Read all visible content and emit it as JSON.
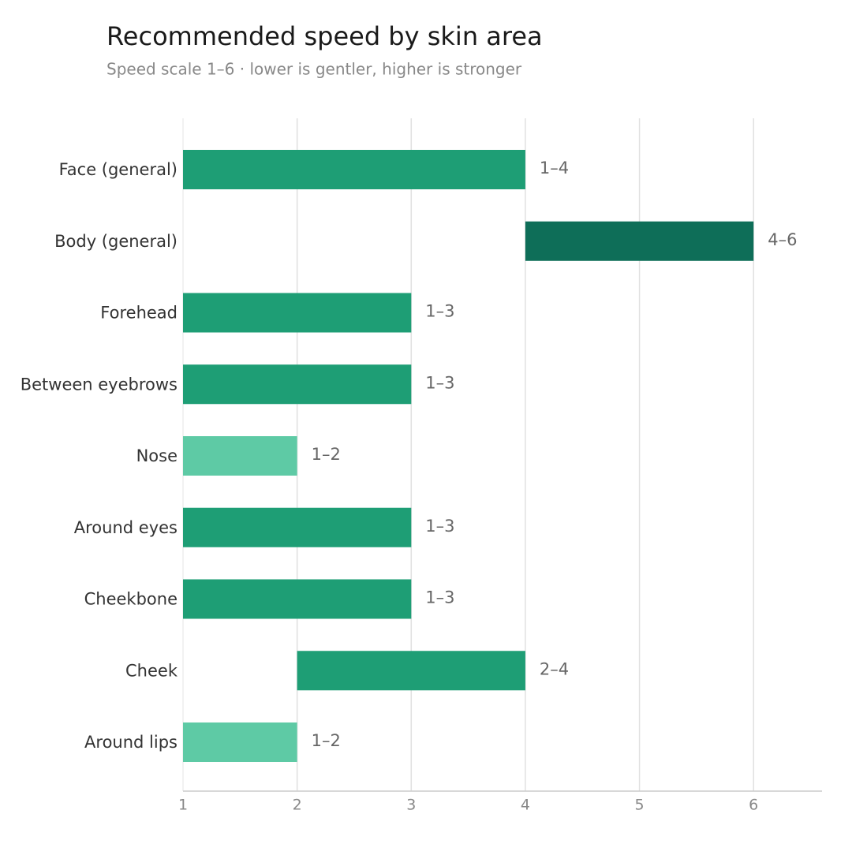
{
  "chart_data": {
    "type": "range-bar",
    "title": "Recommended speed by skin area",
    "subtitle": "Speed scale 1–6  ·  lower is gentler, higher is stronger",
    "categories": [
      "Face (general)",
      "Body (general)",
      "Forehead",
      "Between eyebrows",
      "Nose",
      "Around eyes",
      "Cheekbone",
      "Cheek",
      "Around lips"
    ],
    "low": [
      1,
      4,
      1,
      1,
      1,
      1,
      1,
      2,
      1
    ],
    "high": [
      4,
      6,
      3,
      3,
      2,
      3,
      3,
      4,
      2
    ],
    "value_labels": [
      "1–4",
      "4–6",
      "1–3",
      "1–3",
      "1–2",
      "1–3",
      "1–3",
      "2–4",
      "1–2"
    ],
    "colors": [
      "#1e9e75",
      "#0e6e58",
      "#1e9e75",
      "#1e9e75",
      "#5ecaa5",
      "#1e9e75",
      "#1e9e75",
      "#1e9e75",
      "#5ecaa5"
    ],
    "xlim": [
      1,
      6.6
    ],
    "xticks": [
      1,
      2,
      3,
      4,
      5,
      6
    ],
    "grid": true
  }
}
